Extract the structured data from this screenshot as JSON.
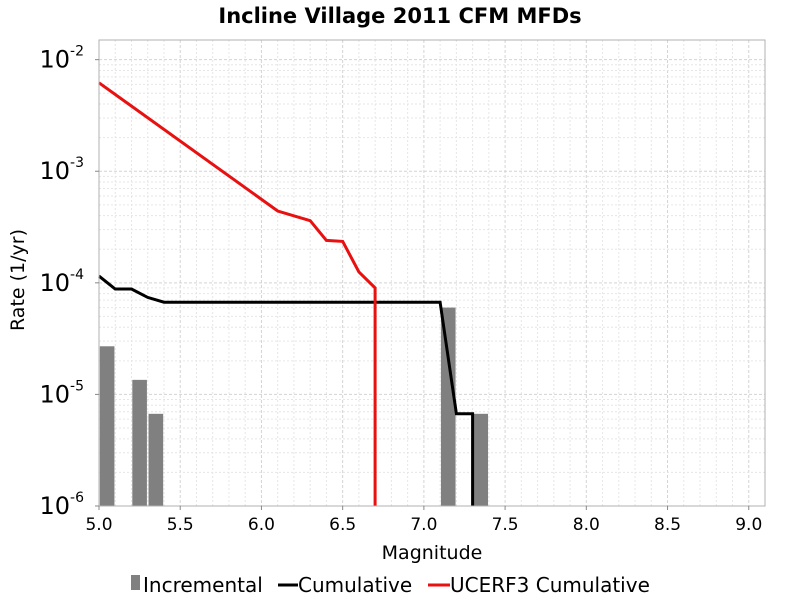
{
  "chart_data": {
    "type": "bar+line",
    "title": "Incline Village 2011 CFM MFDs",
    "xlabel": "Magnitude",
    "ylabel": "Rate (1/yr)",
    "xlim": [
      5.0,
      9.1
    ],
    "ylim": [
      1e-06,
      0.015
    ],
    "yscale": "log",
    "grid": true,
    "legend_position": "bottom",
    "x_ticks": [
      "5.0",
      "5.5",
      "6.0",
      "6.5",
      "7.0",
      "7.5",
      "8.0",
      "8.5",
      "9.0"
    ],
    "x_tick_values": [
      5.0,
      5.5,
      6.0,
      6.5,
      7.0,
      7.5,
      8.0,
      8.5,
      9.0
    ],
    "y_ticks": [
      {
        "value": 1e-06,
        "base": "10",
        "exp": "-6"
      },
      {
        "value": 1e-05,
        "base": "10",
        "exp": "-5"
      },
      {
        "value": 0.0001,
        "base": "10",
        "exp": "-4"
      },
      {
        "value": 0.001,
        "base": "10",
        "exp": "-3"
      },
      {
        "value": 0.01,
        "base": "10",
        "exp": "-2"
      }
    ],
    "series": [
      {
        "name": "Incremental",
        "type": "bar",
        "color": "#808080",
        "x": [
          5.05,
          5.25,
          5.35,
          7.15,
          7.35
        ],
        "y": [
          2.7e-05,
          1.35e-05,
          6.7e-06,
          6e-05,
          6.7e-06
        ]
      },
      {
        "name": "Cumulative",
        "type": "line",
        "color": "#000000",
        "x": [
          5.0,
          5.1,
          5.2,
          5.3,
          5.4,
          7.1,
          7.2,
          7.3,
          7.3
        ],
        "y": [
          0.000115,
          8.8e-05,
          8.8e-05,
          7.4e-05,
          6.7e-05,
          6.7e-05,
          6.7e-06,
          6.7e-06,
          1e-06
        ]
      },
      {
        "name": "UCERF3 Cumulative",
        "type": "line",
        "color": "#e81010",
        "x": [
          5.0,
          6.1,
          6.3,
          6.4,
          6.5,
          6.6,
          6.7,
          6.7
        ],
        "y": [
          0.0062,
          0.00044,
          0.00036,
          0.00024,
          0.000235,
          0.000125,
          9e-05,
          1e-06
        ]
      }
    ]
  }
}
